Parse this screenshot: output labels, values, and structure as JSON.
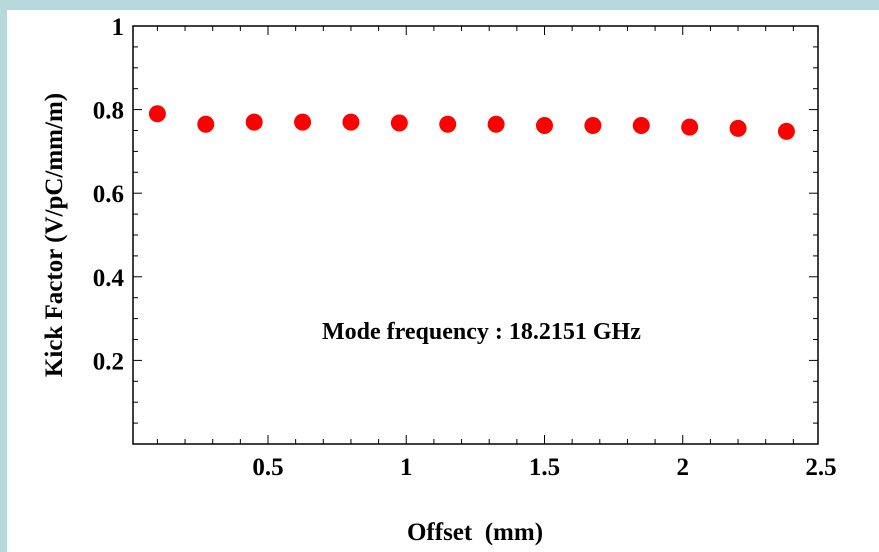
{
  "chart_data": {
    "type": "scatter",
    "title": "",
    "xlabel": "Offset  (mm)",
    "ylabel": "Kick Factor (V/pC/mm/m)",
    "xlim": [
      0.0,
      2.5
    ],
    "ylim": [
      0.0,
      1.0
    ],
    "x_ticks": [
      0.5,
      1,
      1.5,
      2,
      2.5
    ],
    "x_tick_labels": [
      "0.5",
      "1",
      "1.5",
      "2",
      "2.5"
    ],
    "y_ticks": [
      0.2,
      0.4,
      0.6,
      0.8,
      1
    ],
    "y_tick_labels": [
      "0.2",
      "0.4",
      "0.6",
      "0.8",
      "1"
    ],
    "grid": false,
    "point_color": "#ff0000",
    "series": [
      {
        "x": [
          0.1,
          0.275,
          0.45,
          0.625,
          0.8,
          0.975,
          1.15,
          1.325,
          1.5,
          1.675,
          1.85,
          2.025,
          2.2,
          2.375
        ],
        "y": [
          0.79,
          0.765,
          0.77,
          0.77,
          0.77,
          0.768,
          0.765,
          0.765,
          0.762,
          0.762,
          0.762,
          0.758,
          0.755,
          0.748
        ]
      }
    ],
    "annotation": "Mode frequency : 18.2151 GHz"
  }
}
